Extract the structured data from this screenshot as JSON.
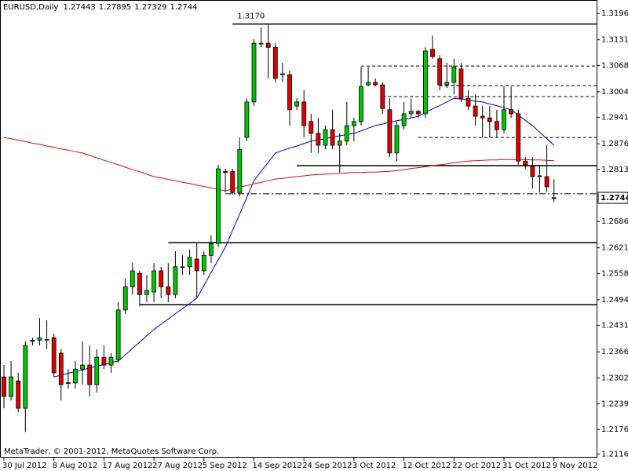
{
  "chart_data": {
    "type": "candlestick",
    "title": "EURUSD,Daily",
    "header_values": [
      1.27443,
      1.27895,
      1.27329,
      1.2744
    ],
    "footer": "MetaTrader, © 2001-2012, MetaQuotes Software Corp.",
    "categories": [
      "30 Jul 2012",
      null,
      null,
      null,
      null,
      null,
      null,
      "8 Aug 2012",
      null,
      null,
      null,
      null,
      null,
      null,
      "17 Aug 2012",
      null,
      null,
      null,
      null,
      null,
      null,
      "27 Aug 2012",
      null,
      null,
      null,
      null,
      null,
      null,
      "5 Sep 2012",
      null,
      null,
      null,
      null,
      null,
      null,
      "14 Sep 2012",
      null,
      null,
      null,
      null,
      null,
      null,
      "24 Sep 2012",
      null,
      null,
      null,
      null,
      null,
      null,
      "3 Oct 2012",
      null,
      null,
      null,
      null,
      null,
      null,
      "12 Oct 2012",
      null,
      null,
      null,
      null,
      null,
      null,
      "22 Oct 2012",
      null,
      null,
      null,
      null,
      null,
      null,
      "31 Oct 2012",
      null,
      null,
      null,
      null,
      null,
      null,
      "9 Nov 2012"
    ],
    "open": [
      1.2305,
      1.2257,
      1.2295,
      1.2228,
      1.2392,
      1.2395,
      1.2397,
      1.2401,
      1.2363,
      1.2291,
      1.229,
      1.2324,
      1.2334,
      1.2286,
      1.2353,
      1.2334,
      1.2347,
      1.2469,
      1.2526,
      1.2559,
      1.2507,
      1.2513,
      1.2565,
      1.2526,
      1.2507,
      1.2575,
      1.2575,
      1.2594,
      1.2565,
      1.2603,
      1.2632,
      1.2809,
      1.2809,
      1.2757,
      1.2892,
      1.2979,
      1.3123,
      1.3123,
      1.3113,
      1.3046,
      1.3046,
      1.2969,
      1.2979,
      1.2931,
      1.2902,
      1.2873,
      1.2911,
      1.2873,
      1.2883,
      1.2921,
      1.2931,
      1.3021,
      1.3027,
      1.3021,
      1.296,
      1.2854,
      1.2921,
      1.295,
      1.2956,
      1.295,
      1.3108,
      1.3085,
      1.3021,
      1.3027,
      1.306,
      1.2988,
      1.2969,
      1.2944,
      1.294,
      1.2931,
      1.2911,
      1.296,
      1.295,
      1.2834,
      1.2821,
      1.2796,
      1.2796,
      1.27443
    ],
    "high": [
      1.2334,
      1.2344,
      1.2315,
      1.2392,
      1.2401,
      1.2449,
      1.2444,
      1.2411,
      1.2373,
      1.2324,
      1.2344,
      1.2392,
      1.2382,
      1.2373,
      1.2382,
      1.2363,
      1.2488,
      1.2546,
      1.2584,
      1.2565,
      1.2555,
      1.2584,
      1.2575,
      1.2584,
      1.2613,
      1.2603,
      1.2617,
      1.2632,
      1.2613,
      1.2652,
      1.2825,
      1.2815,
      1.2815,
      1.2892,
      1.2988,
      1.3133,
      1.3162,
      1.317,
      1.3123,
      1.3075,
      1.3056,
      1.2988,
      1.3008,
      1.295,
      1.294,
      1.2921,
      1.296,
      1.2902,
      1.2979,
      1.294,
      1.3065,
      1.3065,
      1.3037,
      1.3027,
      1.2988,
      1.2931,
      1.2979,
      1.2988,
      1.296,
      1.3113,
      1.3142,
      1.3094,
      1.3075,
      1.3085,
      1.3075,
      1.3008,
      1.2998,
      1.2969,
      1.2969,
      1.296,
      1.3017,
      1.3017,
      1.296,
      1.2844,
      1.2844,
      1.2825,
      1.2873,
      1.27895
    ],
    "low": [
      1.2228,
      1.2247,
      1.2218,
      1.217,
      1.2382,
      1.2382,
      1.2373,
      1.2305,
      1.2247,
      1.2276,
      1.2276,
      1.2286,
      1.2257,
      1.2267,
      1.2324,
      1.2315,
      1.234,
      1.2459,
      1.2507,
      1.2478,
      1.2488,
      1.2488,
      1.2498,
      1.2488,
      1.2498,
      1.2555,
      1.2555,
      1.2498,
      1.2555,
      1.2584,
      1.2623,
      1.2757,
      1.2752,
      1.2748,
      1.2883,
      1.2969,
      1.3113,
      1.3037,
      1.3027,
      1.3027,
      1.2921,
      1.296,
      1.2892,
      1.2854,
      1.2854,
      1.2863,
      1.2863,
      1.2806,
      1.2873,
      1.2883,
      1.2921,
      1.3017,
      1.3017,
      1.295,
      1.2844,
      1.2834,
      1.2911,
      1.294,
      1.294,
      1.294,
      1.3085,
      1.3008,
      1.3013,
      1.2998,
      1.2979,
      1.296,
      1.2921,
      1.2892,
      1.2892,
      1.2892,
      1.2902,
      1.294,
      1.2825,
      1.2815,
      1.2767,
      1.2757,
      1.2757,
      1.27329
    ],
    "close": [
      1.2257,
      1.2305,
      1.2228,
      1.2382,
      1.2395,
      1.2401,
      1.2397,
      1.2315,
      1.2286,
      1.2291,
      1.2324,
      1.2334,
      1.2286,
      1.2353,
      1.2334,
      1.2353,
      1.2469,
      1.2526,
      1.2565,
      1.2507,
      1.2517,
      1.2565,
      1.2526,
      1.2507,
      1.2575,
      1.2575,
      1.2598,
      1.2565,
      1.2603,
      1.2632,
      1.2815,
      1.2806,
      1.2757,
      1.2863,
      1.2979,
      1.3123,
      1.3123,
      1.3113,
      1.3037,
      1.3048,
      1.296,
      1.2979,
      1.2921,
      1.2902,
      1.2873,
      1.2911,
      1.2873,
      1.2883,
      1.2921,
      1.2931,
      1.3017,
      1.3027,
      1.3021,
      1.2963,
      1.2854,
      1.2921,
      1.295,
      1.2956,
      1.295,
      1.3104,
      1.309,
      1.3021,
      1.3027,
      1.3065,
      1.2988,
      1.2969,
      1.2944,
      1.294,
      1.2931,
      1.2911,
      1.296,
      1.295,
      1.2834,
      1.2825,
      1.2796,
      1.2798,
      1.2771,
      1.2744
    ],
    "up_color": "#00c800",
    "down_color": "#e00000",
    "moving_averages": [
      {
        "color": "#0000c0",
        "values": [
          null,
          null,
          null,
          null,
          null,
          null,
          null,
          1.2305,
          1.2309,
          1.2314,
          1.2318,
          1.2322,
          1.2327,
          1.2331,
          1.2335,
          1.234,
          1.2344,
          1.2359,
          1.2375,
          1.239,
          1.2406,
          1.2421,
          1.2434,
          1.2447,
          1.246,
          1.2472,
          1.2485,
          1.2498,
          1.2529,
          1.2561,
          1.2592,
          1.2623,
          1.2664,
          1.2704,
          1.2745,
          1.2786,
          1.2809,
          1.2831,
          1.2854,
          1.286,
          1.2866,
          1.2871,
          1.2877,
          1.2883,
          1.2886,
          1.2889,
          1.2893,
          1.2896,
          1.2899,
          1.2902,
          1.2908,
          1.2915,
          1.2921,
          1.2925,
          1.2929,
          1.2933,
          1.2936,
          1.294,
          1.2944,
          1.2953,
          1.2962,
          1.297,
          1.2979,
          1.2988,
          1.2986,
          1.2984,
          1.2981,
          1.2979,
          1.2974,
          1.297,
          1.2965,
          1.296,
          1.2947,
          1.2934,
          1.2921,
          1.2905,
          1.2889,
          1.2873
        ]
      },
      {
        "color": "#d01010",
        "values": [
          1.2892,
          1.2889,
          1.2885,
          1.2882,
          1.2878,
          1.2875,
          1.2871,
          1.2868,
          1.2864,
          1.2861,
          1.2857,
          1.2854,
          1.2848,
          1.2842,
          1.2836,
          1.2831,
          1.2825,
          1.2819,
          1.2813,
          1.2808,
          1.2802,
          1.2796,
          1.2793,
          1.2789,
          1.2786,
          1.2782,
          1.2779,
          1.2775,
          1.2772,
          1.2768,
          1.2765,
          1.2761,
          1.2766,
          1.277,
          1.2774,
          1.2778,
          1.2782,
          1.2786,
          1.279,
          1.2792,
          1.2794,
          1.2796,
          1.2798,
          1.28,
          1.2801,
          1.2802,
          1.2803,
          1.2804,
          1.2805,
          1.2806,
          1.2806,
          1.2807,
          1.2807,
          1.2808,
          1.2809,
          1.2811,
          1.2813,
          1.2816,
          1.2818,
          1.282,
          1.2823,
          1.2825,
          1.2827,
          1.283,
          1.2832,
          1.2834,
          1.2835,
          1.2836,
          1.2837,
          1.2837,
          1.2838,
          1.2838,
          1.2838,
          1.2838,
          1.2837,
          1.2837,
          1.2836,
          1.2835
        ]
      }
    ],
    "levels": [
      {
        "value": 1.317,
        "label": "1.3170",
        "style": "solid",
        "start_index": 32
      },
      {
        "value": 1.2823,
        "style": "solid",
        "start_index": 41
      },
      {
        "value": 1.2634,
        "style": "solid",
        "start_index": 23
      },
      {
        "value": 1.2482,
        "style": "solid",
        "start_index": 19
      },
      {
        "value": 1.3067,
        "style": "dashed",
        "start_index": 50
      },
      {
        "value": 1.3019,
        "style": "dashed",
        "start_index": 61
      },
      {
        "value": 1.2992,
        "style": "dashed",
        "start_index": 53
      },
      {
        "value": 1.2892,
        "style": "dashed",
        "start_index": 58
      },
      {
        "value": 1.2754,
        "style": "dashdot",
        "start_index": 31
      }
    ],
    "current_price": {
      "value": 1.2744,
      "label": "1.27440"
    },
    "ylim": [
      1.2107,
      1.3229
    ],
    "yticks": [
      {
        "value": 1.3196,
        "label": "1.31960"
      },
      {
        "value": 1.31315,
        "label": "1.31315"
      },
      {
        "value": 1.30685,
        "label": "1.30685"
      },
      {
        "value": 1.3004,
        "label": "1.30040"
      },
      {
        "value": 1.2941,
        "label": "1.29410"
      },
      {
        "value": 1.28765,
        "label": "1.28765"
      },
      {
        "value": 1.28135,
        "label": "1.28135"
      },
      {
        "value": 1.2686,
        "label": "1.26860"
      },
      {
        "value": 1.26215,
        "label": "1.26215"
      },
      {
        "value": 1.25585,
        "label": "1.25585"
      },
      {
        "value": 1.2494,
        "label": "1.24940"
      },
      {
        "value": 1.2431,
        "label": "1.24310"
      },
      {
        "value": 1.23665,
        "label": "1.23665"
      },
      {
        "value": 1.23025,
        "label": "1.23025"
      },
      {
        "value": 1.2239,
        "label": "1.22390"
      },
      {
        "value": 1.2176,
        "label": "1.21760"
      },
      1.2116
    ],
    "grid": false
  }
}
